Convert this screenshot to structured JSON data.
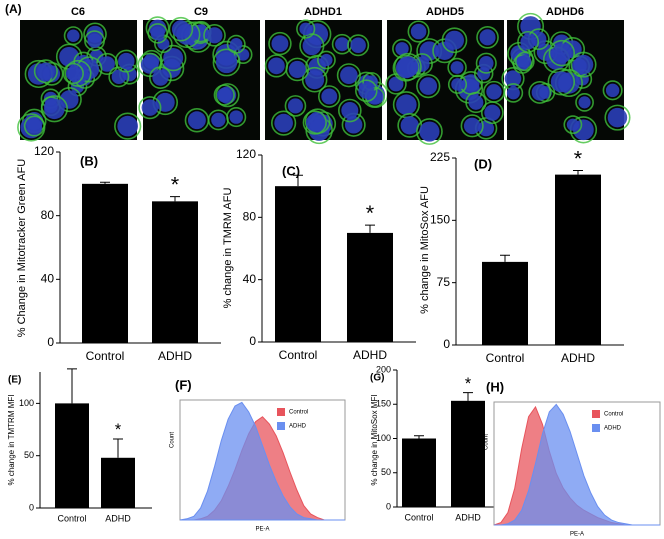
{
  "figure": {
    "label": "(A)",
    "images": [
      "C6",
      "C9",
      "ADHD1",
      "ADHD5",
      "ADHD6"
    ]
  },
  "chart_data": [
    {
      "type": "bar",
      "title": "(B)",
      "y_label": "% Change in Mitotracker Green AFU",
      "categories": [
        "Control",
        "ADHD"
      ],
      "values": [
        100,
        89
      ],
      "errors": [
        1,
        3
      ],
      "annotation": "*",
      "color": "#000000",
      "ylim": [
        0,
        120
      ],
      "yticks": [
        0,
        40,
        80,
        120
      ]
    },
    {
      "type": "bar",
      "title": "(C)",
      "y_label": "% change in TMRM AFU",
      "categories": [
        "Control",
        "ADHD"
      ],
      "values": [
        100,
        70
      ],
      "errors": [
        7,
        5
      ],
      "annotation": "*",
      "color": "#000000",
      "ylim": [
        0,
        120
      ],
      "yticks": [
        0,
        40,
        80,
        120
      ]
    },
    {
      "type": "bar",
      "title": "(D)",
      "y_label": "% change in MitoSox AFU",
      "categories": [
        "Control",
        "ADHD"
      ],
      "values": [
        100,
        205
      ],
      "errors": [
        8,
        5
      ],
      "annotation": "*",
      "color": "#000000",
      "ylim": [
        0,
        225
      ],
      "yticks": [
        0,
        75,
        150,
        225
      ]
    },
    {
      "type": "bar",
      "title": "(E)",
      "y_label": "% change in TMTRM MFI",
      "categories": [
        "Control",
        "ADHD"
      ],
      "values": [
        100,
        48
      ],
      "errors": [
        33,
        18
      ],
      "annotation": "*",
      "color": "#000000",
      "ylim": [
        0,
        130
      ],
      "yticks": [
        0,
        50,
        100
      ]
    },
    {
      "type": "area",
      "title": "(F)",
      "x_label": "PE-A",
      "y_label": "Count",
      "x": [
        0,
        1,
        2,
        3,
        4,
        5,
        6,
        7,
        8,
        9,
        10,
        11,
        12,
        13,
        14,
        15,
        16,
        17,
        18,
        19,
        20,
        21,
        22,
        23,
        24
      ],
      "series": [
        {
          "name": "Control",
          "color": "#e8545c",
          "values": [
            0,
            0,
            0,
            1,
            3,
            8,
            16,
            28,
            42,
            58,
            72,
            82,
            86,
            80,
            70,
            56,
            40,
            25,
            12,
            5,
            2,
            0,
            0,
            0,
            0
          ]
        },
        {
          "name": "ADHD",
          "color": "#6a8ff0",
          "values": [
            0,
            1,
            3,
            10,
            24,
            44,
            66,
            84,
            95,
            98,
            90,
            78,
            62,
            46,
            32,
            20,
            11,
            5,
            2,
            1,
            0,
            0,
            0,
            0,
            0
          ]
        }
      ],
      "xlim": [
        0,
        24
      ],
      "ylim": [
        0,
        100
      ]
    },
    {
      "type": "bar",
      "title": "(G)",
      "y_label": "% change in MitoSox MFI",
      "categories": [
        "Control",
        "ADHD"
      ],
      "values": [
        100,
        155
      ],
      "errors": [
        4,
        12
      ],
      "annotation": "*",
      "color": "#000000",
      "ylim": [
        0,
        200
      ],
      "yticks": [
        0,
        50,
        100,
        150,
        200
      ]
    },
    {
      "type": "area",
      "title": "(H)",
      "x_label": "PE-A",
      "y_label": "Count",
      "x": [
        0,
        1,
        2,
        3,
        4,
        5,
        6,
        7,
        8,
        9,
        10,
        11,
        12,
        13,
        14,
        15,
        16,
        17,
        18,
        19,
        20,
        21,
        22,
        23,
        24
      ],
      "series": [
        {
          "name": "Control",
          "color": "#e8545c",
          "values": [
            0,
            2,
            10,
            30,
            62,
            88,
            96,
            82,
            60,
            42,
            30,
            22,
            16,
            12,
            9,
            6,
            4,
            2,
            1,
            0,
            0,
            0,
            0,
            0,
            0
          ]
        },
        {
          "name": "ADHD",
          "color": "#6a8ff0",
          "values": [
            0,
            0,
            1,
            4,
            12,
            28,
            50,
            74,
            92,
            98,
            90,
            76,
            58,
            40,
            26,
            15,
            8,
            4,
            2,
            1,
            0,
            0,
            0,
            0,
            0
          ]
        }
      ],
      "xlim": [
        0,
        24
      ],
      "ylim": [
        0,
        100
      ]
    }
  ]
}
